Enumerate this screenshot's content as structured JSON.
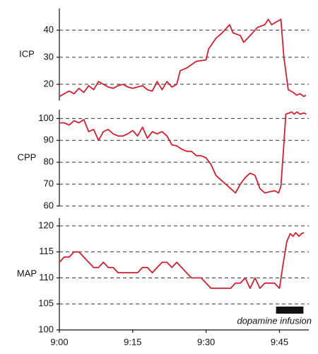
{
  "chart_data": [
    {
      "type": "line",
      "ylabel": "ICP",
      "color": "#cc2233",
      "grid": true,
      "xlim": [
        0,
        51
      ],
      "ylim": [
        14,
        48
      ],
      "yticks": [
        20,
        30,
        40
      ],
      "x": [
        0,
        1,
        2,
        3,
        4,
        5,
        6,
        7,
        8,
        9,
        10,
        11,
        12,
        13,
        14,
        15,
        16,
        17,
        18,
        19,
        20,
        21,
        22,
        23,
        24,
        24.7,
        26,
        28,
        30,
        30.5,
        32,
        33.3,
        34.8,
        35.5,
        37,
        37.7,
        39,
        40.5,
        42,
        42.7,
        43.4,
        45.3,
        45.9,
        46.8,
        47.8,
        48.5,
        49.2,
        50,
        50.4
      ],
      "values": [
        15.5,
        16.5,
        17.5,
        16.5,
        18.5,
        17,
        19.5,
        18,
        21,
        20,
        19,
        18.5,
        19.5,
        20,
        19,
        18.5,
        19,
        19.5,
        18,
        17.5,
        21,
        18,
        21,
        19,
        20,
        25,
        26,
        28.5,
        29,
        33,
        37,
        39,
        42,
        39,
        38,
        35.5,
        38,
        41,
        42,
        44,
        42,
        44,
        30,
        18,
        17,
        16,
        16.5,
        15.5,
        16
      ]
    },
    {
      "type": "line",
      "ylabel": "CPP",
      "color": "#cc2233",
      "grid": true,
      "xlim": [
        0,
        51
      ],
      "ylim": [
        60,
        104
      ],
      "yticks": [
        60,
        70,
        80,
        90,
        100
      ],
      "x": [
        0,
        1,
        2,
        3,
        4,
        5,
        6,
        7,
        8,
        9,
        10,
        11,
        12,
        13,
        14,
        15,
        16,
        17,
        18,
        19,
        20,
        21,
        22,
        23,
        24,
        25,
        26,
        27,
        28,
        29,
        30,
        31,
        32,
        33,
        34,
        35,
        36,
        37,
        38,
        39,
        40,
        41,
        42,
        43,
        44,
        44.8,
        45.3,
        45.8,
        46.3,
        47,
        47.5,
        48,
        48.6,
        49.2,
        50,
        50.5
      ],
      "values": [
        98,
        98,
        97,
        99,
        98,
        99.5,
        94,
        95,
        90,
        94,
        95,
        93,
        92,
        92,
        93,
        94.5,
        92,
        96,
        91,
        94,
        93,
        94,
        92,
        88,
        87.5,
        86,
        85,
        85,
        83,
        83,
        82,
        79,
        74,
        72,
        70,
        68,
        66,
        70,
        73,
        75,
        74,
        68,
        66,
        66.5,
        67,
        66,
        69,
        85,
        102,
        102.5,
        103,
        102,
        103,
        102,
        102.5,
        102
      ]
    },
    {
      "type": "line",
      "ylabel": "MAP",
      "color": "#cc2233",
      "grid": true,
      "xlim": [
        0,
        51
      ],
      "ylim": [
        100,
        121.5
      ],
      "yticks": [
        100,
        105,
        110,
        115,
        120
      ],
      "xticks": [
        {
          "value": 0,
          "label": "9:00"
        },
        {
          "value": 15,
          "label": "9:15"
        },
        {
          "value": 30,
          "label": "9:30"
        },
        {
          "value": 45,
          "label": "9:45"
        }
      ],
      "x": [
        0,
        1,
        2,
        3,
        4,
        5,
        6,
        7,
        8,
        9,
        10,
        11,
        12,
        13,
        14,
        15,
        16,
        17,
        18,
        19,
        20,
        21,
        22,
        23,
        24,
        25,
        26,
        27,
        28,
        29,
        30,
        31,
        32,
        33,
        34,
        35,
        36,
        37,
        38,
        39,
        40,
        41,
        42,
        43,
        44,
        45,
        45.8,
        46.5,
        47.2,
        47.8,
        48.3,
        49,
        49.5,
        50
      ],
      "values": [
        113,
        114,
        114,
        115,
        115,
        114,
        113,
        112,
        112,
        113,
        112,
        112,
        111,
        111,
        111,
        111,
        111,
        112,
        112,
        111,
        112,
        113,
        113,
        112,
        113,
        112,
        111,
        110,
        110,
        110,
        109,
        108,
        108,
        108,
        108,
        108,
        109,
        109,
        110,
        108,
        110,
        108,
        109,
        109,
        109,
        108,
        113,
        117,
        118.5,
        118,
        118.7,
        118,
        118.5,
        118.7
      ],
      "annotation": {
        "text": "dopamine infusion",
        "x_start": 44.3,
        "x_end": 49.9
      }
    }
  ]
}
